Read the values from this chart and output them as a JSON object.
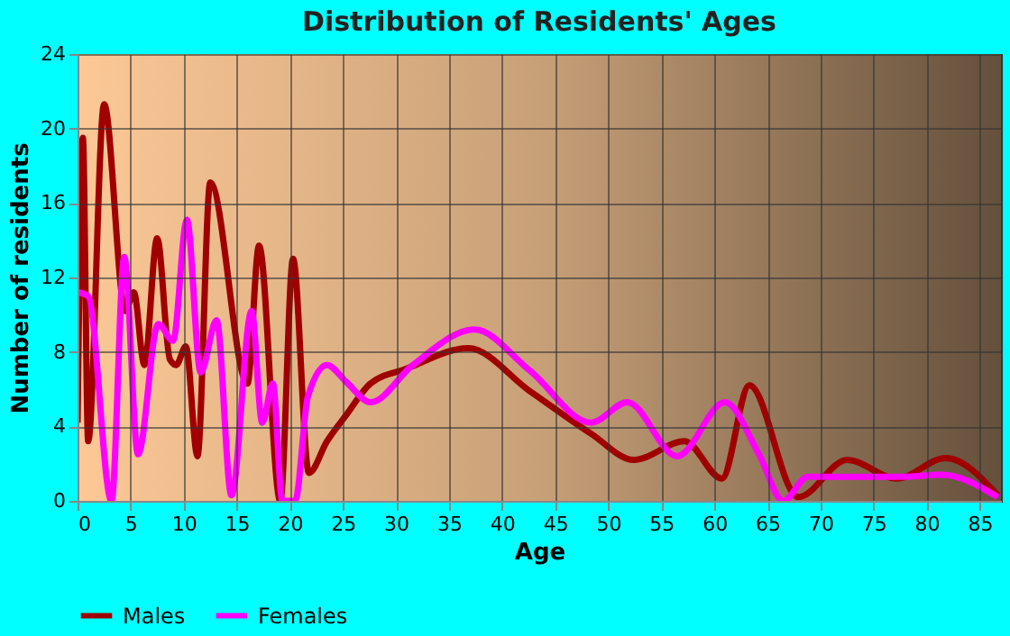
{
  "chart_data": {
    "type": "line",
    "title": "Distribution of Residents' Ages",
    "xlabel": "Age",
    "ylabel": "Number of residents",
    "xlim": [
      0,
      87
    ],
    "xticks": [
      0,
      5,
      10,
      15,
      20,
      25,
      30,
      35,
      40,
      45,
      50,
      55,
      60,
      65,
      70,
      75,
      80,
      85
    ],
    "ylim": [
      0,
      24
    ],
    "yticks": [
      0,
      4,
      8,
      12,
      16,
      20,
      24
    ],
    "grid": true,
    "legend": "bottom",
    "marker": "none",
    "line_style": "solid",
    "series": [
      {
        "name": "Males",
        "color": "#a00000",
        "x": [
          0,
          0.5,
          1,
          2.5,
          4.5,
          5.3,
          6.3,
          7.5,
          8.7,
          9.3,
          10.2,
          11.3,
          12.5,
          16,
          17.1,
          19.1,
          20.3,
          21.8,
          23.5,
          25.3,
          27.6,
          31,
          36.8,
          42.6,
          48.4,
          52.4,
          57.2,
          60.7,
          63.3,
          67.9,
          72.5,
          77.2,
          81.8,
          86.7
        ],
        "values": [
          4.2,
          19.5,
          3.2,
          21.3,
          10.2,
          11.2,
          7.3,
          14.1,
          7.6,
          7.3,
          8.3,
          2.4,
          17.1,
          6.3,
          13.7,
          0,
          13,
          1.5,
          3.2,
          4.6,
          6.3,
          7.1,
          8.2,
          5.9,
          3.6,
          2.2,
          3.2,
          1.2,
          6.2,
          0.2,
          2.2,
          1.2,
          2.3,
          0.3
        ]
      },
      {
        "name": "Females",
        "color": "#ff00ff",
        "x": [
          0,
          1,
          3.2,
          4.4,
          5.7,
          7.6,
          9,
          10.3,
          11.6,
          13.1,
          14.5,
          16.4,
          17.4,
          18.4,
          19.3,
          20.5,
          21.7,
          23.5,
          25.3,
          27.6,
          31.6,
          37.4,
          42.6,
          48.4,
          51.8,
          56.5,
          61,
          64.2,
          66.5,
          68.8,
          78,
          81.4,
          86.7
        ],
        "values": [
          11.2,
          11,
          0,
          13.1,
          2.5,
          9.5,
          8.6,
          15.1,
          6.9,
          9.7,
          0.3,
          10.2,
          4.2,
          6.3,
          0,
          0,
          5.6,
          7.3,
          6.4,
          5.3,
          7.3,
          9.2,
          7,
          4.2,
          5.3,
          2.4,
          5.3,
          2.5,
          0,
          1.3,
          1.3,
          1.4,
          0.2
        ]
      }
    ]
  }
}
